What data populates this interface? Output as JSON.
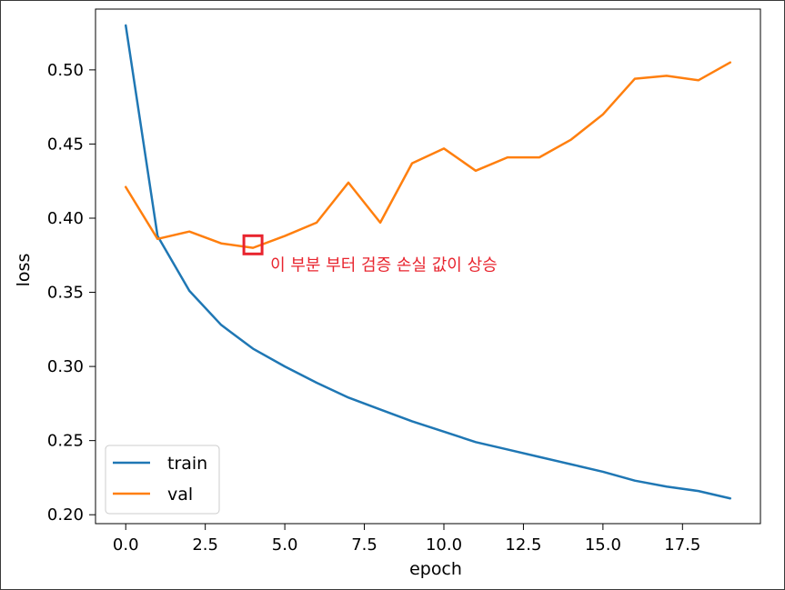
{
  "chart_data": {
    "type": "line",
    "xlabel": "epoch",
    "ylabel": "loss",
    "xlim": [
      -0.95,
      19.95
    ],
    "ylim": [
      0.194,
      0.541
    ],
    "xticks": [
      0.0,
      2.5,
      5.0,
      7.5,
      10.0,
      12.5,
      15.0,
      17.5
    ],
    "xtick_labels": [
      "0.0",
      "2.5",
      "5.0",
      "7.5",
      "10.0",
      "12.5",
      "15.0",
      "17.5"
    ],
    "yticks": [
      0.2,
      0.25,
      0.3,
      0.35,
      0.4,
      0.45,
      0.5
    ],
    "ytick_labels": [
      "0.20",
      "0.25",
      "0.30",
      "0.35",
      "0.40",
      "0.45",
      "0.50"
    ],
    "grid": false,
    "legend_position": "lower-left",
    "x": [
      0,
      1,
      2,
      3,
      4,
      5,
      6,
      7,
      8,
      9,
      10,
      11,
      12,
      13,
      14,
      15,
      16,
      17,
      18,
      19
    ],
    "series": [
      {
        "name": "train",
        "color": "#1f77b4",
        "values": [
          0.53,
          0.388,
          0.351,
          0.328,
          0.312,
          0.3,
          0.289,
          0.279,
          0.271,
          0.263,
          0.256,
          0.249,
          0.244,
          0.239,
          0.234,
          0.229,
          0.223,
          0.219,
          0.216,
          0.211
        ]
      },
      {
        "name": "val",
        "color": "#ff7f0e",
        "values": [
          0.421,
          0.386,
          0.391,
          0.383,
          0.38,
          0.388,
          0.397,
          0.424,
          0.397,
          0.437,
          0.447,
          0.432,
          0.441,
          0.441,
          0.453,
          0.47,
          0.494,
          0.496,
          0.493,
          0.505
        ]
      }
    ],
    "annotation": {
      "text": "이 부분 부터 검증 손실 값이 상승",
      "x": 4,
      "y": 0.382,
      "color": "#e8242e"
    }
  }
}
